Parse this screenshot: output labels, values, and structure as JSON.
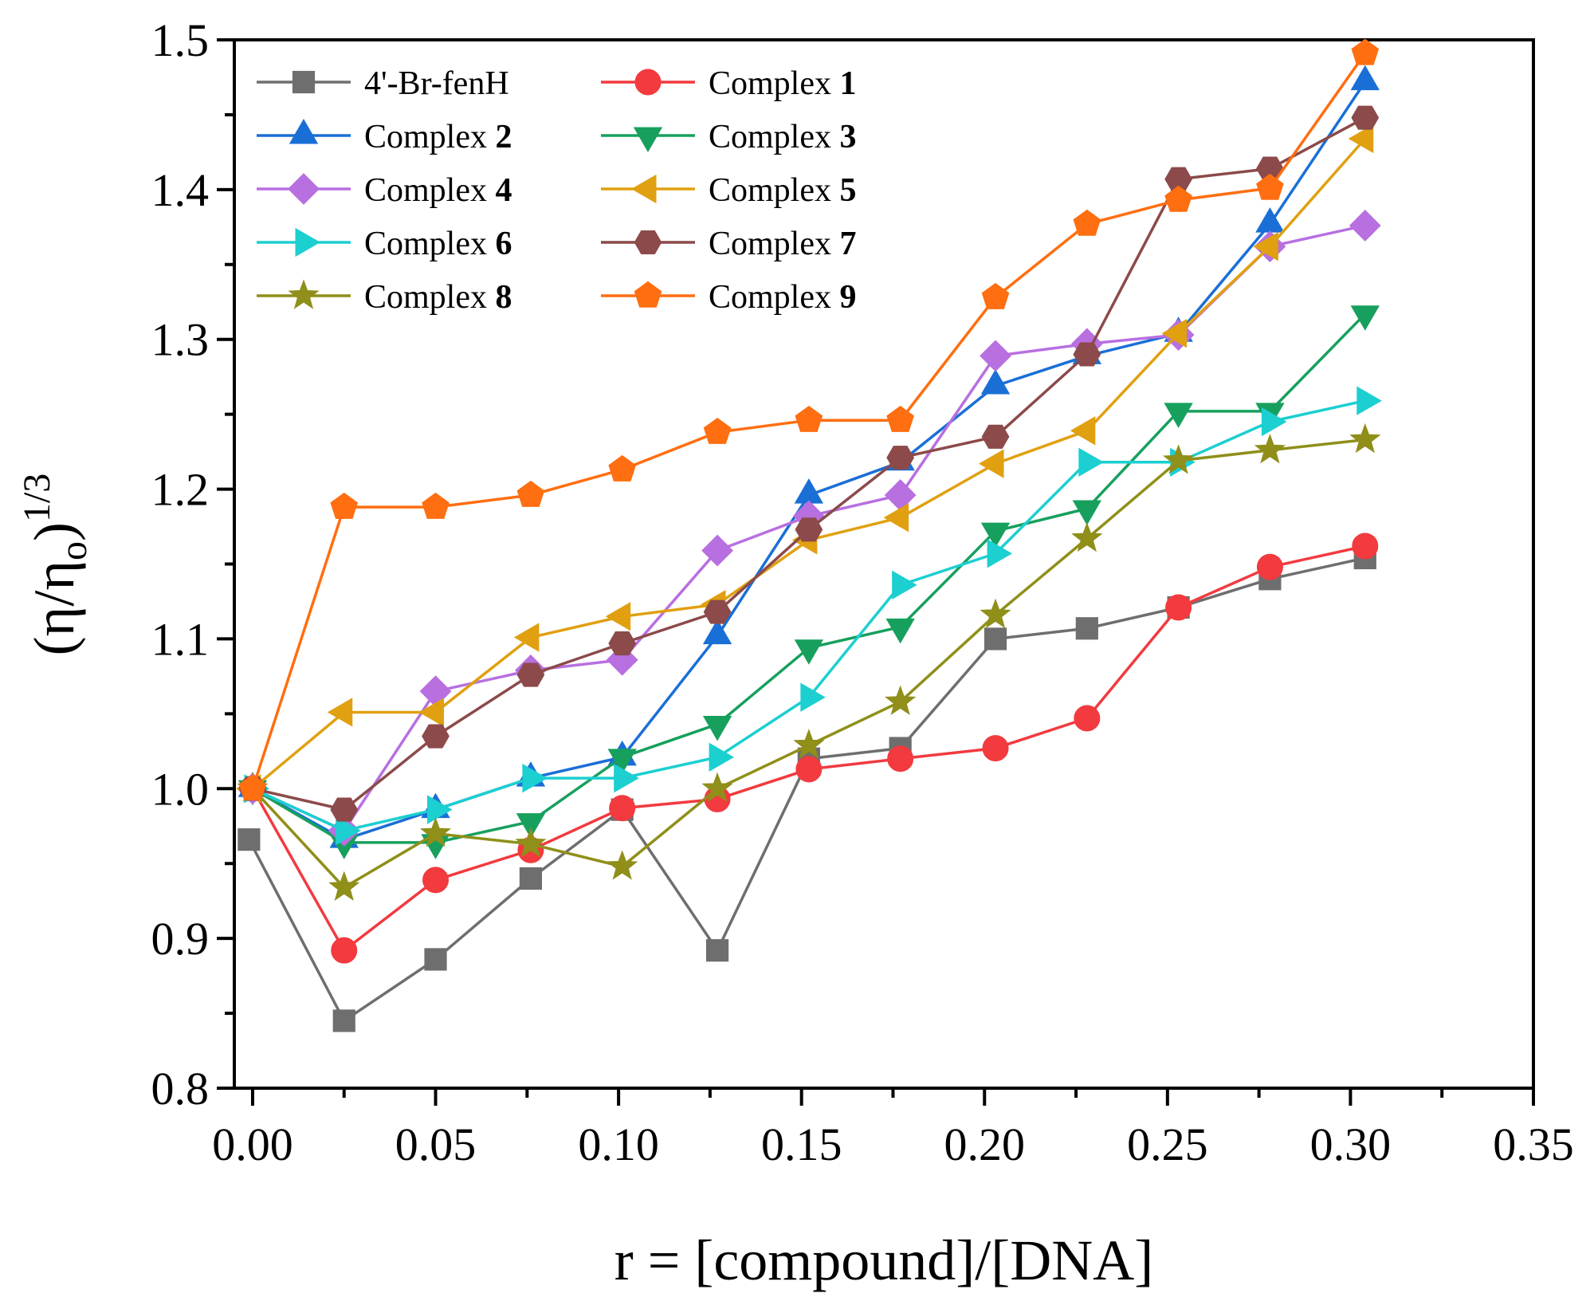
{
  "chart_data": {
    "type": "line",
    "xlabel": "r = [compound]/[DNA]",
    "ylabel_main": "(η/η",
    "ylabel_sub": "o",
    "ylabel_close": ")",
    "ylabel_sup": "1/3",
    "xlim": [
      -0.005,
      0.35
    ],
    "ylim": [
      0.8,
      1.5
    ],
    "xticks": [
      0.0,
      0.05,
      0.1,
      0.15,
      0.2,
      0.25,
      0.3,
      0.35
    ],
    "xtick_labels": [
      "0.00",
      "0.05",
      "0.10",
      "0.15",
      "0.20",
      "0.25",
      "0.30",
      "0.35"
    ],
    "yticks": [
      0.8,
      0.9,
      1.0,
      1.1,
      1.2,
      1.3,
      1.4,
      1.5
    ],
    "ytick_labels": [
      "0.8",
      "0.9",
      "1.0",
      "1.1",
      "1.2",
      "1.3",
      "1.4",
      "1.5"
    ],
    "grid": false,
    "legend_position": "top-left",
    "series": [
      {
        "name": "4'-Br-fenH",
        "label_prefix": "4'-Br-fenH",
        "label_num": "",
        "color": "#6e6e6e",
        "marker": "square",
        "x": [
          0.0,
          0.025,
          0.05,
          0.076,
          0.101,
          0.127,
          0.152,
          0.177,
          0.203,
          0.228,
          0.253,
          0.278,
          0.304
        ],
        "y": [
          0.966,
          0.845,
          0.886,
          0.94,
          0.986,
          0.892,
          1.02,
          1.027,
          1.1,
          1.107,
          1.121,
          1.14,
          1.154
        ],
        "xfirst": -0.001,
        "yfirst": 0.966
      },
      {
        "name": "Complex 1",
        "label_prefix": "Complex ",
        "label_num": "1",
        "color": "#f23a3f",
        "marker": "circle",
        "x": [
          0.0,
          0.025,
          0.05,
          0.076,
          0.101,
          0.127,
          0.152,
          0.177,
          0.203,
          0.228,
          0.253,
          0.278,
          0.304
        ],
        "y": [
          1.0,
          0.892,
          0.939,
          0.959,
          0.987,
          0.993,
          1.013,
          1.02,
          1.027,
          1.047,
          1.121,
          1.148,
          1.162
        ]
      },
      {
        "name": "Complex 2",
        "label_prefix": "Complex ",
        "label_num": "2",
        "color": "#1a6fd6",
        "marker": "triangle-up",
        "x": [
          0.0,
          0.025,
          0.05,
          0.076,
          0.101,
          0.127,
          0.152,
          0.177,
          0.203,
          0.228,
          0.253,
          0.278,
          0.304
        ],
        "y": [
          1.0,
          0.966,
          0.986,
          1.007,
          1.021,
          1.102,
          1.196,
          1.218,
          1.269,
          1.289,
          1.304,
          1.377,
          1.472
        ]
      },
      {
        "name": "Complex 3",
        "label_prefix": "Complex ",
        "label_num": "3",
        "color": "#17a05d",
        "marker": "triangle-down",
        "x": [
          0.0,
          0.025,
          0.05,
          0.076,
          0.101,
          0.127,
          0.152,
          0.177,
          0.203,
          0.228,
          0.253,
          0.278,
          0.304
        ],
        "y": [
          1.0,
          0.964,
          0.964,
          0.978,
          1.021,
          1.043,
          1.094,
          1.108,
          1.172,
          1.187,
          1.252,
          1.252,
          1.317
        ]
      },
      {
        "name": "Complex 4",
        "label_prefix": "Complex ",
        "label_num": "4",
        "color": "#b86fe0",
        "marker": "diamond",
        "x": [
          0.0,
          0.025,
          0.05,
          0.076,
          0.101,
          0.127,
          0.152,
          0.177,
          0.203,
          0.228,
          0.253,
          0.278,
          0.304
        ],
        "y": [
          1.0,
          0.972,
          1.065,
          1.079,
          1.086,
          1.159,
          1.182,
          1.196,
          1.289,
          1.297,
          1.303,
          1.362,
          1.376
        ]
      },
      {
        "name": "Complex 5",
        "label_prefix": "Complex ",
        "label_num": "5",
        "color": "#e0a010",
        "marker": "triangle-left",
        "x": [
          0.0,
          0.025,
          0.05,
          0.076,
          0.101,
          0.127,
          0.152,
          0.177,
          0.203,
          0.228,
          0.253,
          0.278,
          0.304
        ],
        "y": [
          1.0,
          1.051,
          1.051,
          1.101,
          1.115,
          1.123,
          1.166,
          1.181,
          1.217,
          1.239,
          1.304,
          1.362,
          1.434
        ]
      },
      {
        "name": "Complex 6",
        "label_prefix": "Complex ",
        "label_num": "6",
        "color": "#1ccfd0",
        "marker": "triangle-right",
        "x": [
          0.0,
          0.025,
          0.05,
          0.076,
          0.101,
          0.127,
          0.152,
          0.177,
          0.203,
          0.228,
          0.253,
          0.278,
          0.304
        ],
        "y": [
          1.0,
          0.972,
          0.986,
          1.007,
          1.007,
          1.021,
          1.061,
          1.136,
          1.157,
          1.218,
          1.218,
          1.245,
          1.259
        ]
      },
      {
        "name": "Complex 7",
        "label_prefix": "Complex ",
        "label_num": "7",
        "color": "#8c4a4a",
        "marker": "hexagon",
        "x": [
          0.0,
          0.025,
          0.05,
          0.076,
          0.101,
          0.127,
          0.152,
          0.177,
          0.203,
          0.228,
          0.253,
          0.278,
          0.304
        ],
        "y": [
          1.0,
          0.986,
          1.035,
          1.076,
          1.097,
          1.118,
          1.173,
          1.221,
          1.235,
          1.29,
          1.407,
          1.414,
          1.448
        ]
      },
      {
        "name": "Complex 8",
        "label_prefix": "Complex ",
        "label_num": "8",
        "color": "#8f8f1a",
        "marker": "star",
        "x": [
          0.0,
          0.025,
          0.05,
          0.076,
          0.101,
          0.127,
          0.152,
          0.177,
          0.203,
          0.228,
          0.253,
          0.278,
          0.304
        ],
        "y": [
          1.0,
          0.934,
          0.97,
          0.963,
          0.948,
          1.0,
          1.029,
          1.058,
          1.116,
          1.167,
          1.219,
          1.226,
          1.233
        ]
      },
      {
        "name": "Complex 9",
        "label_prefix": "Complex ",
        "label_num": "9",
        "color": "#ff6e10",
        "marker": "pentagon",
        "x": [
          0.0,
          0.025,
          0.05,
          0.076,
          0.101,
          0.127,
          0.152,
          0.177,
          0.203,
          0.228,
          0.253,
          0.278,
          0.304
        ],
        "y": [
          1.0,
          1.188,
          1.188,
          1.196,
          1.213,
          1.238,
          1.246,
          1.246,
          1.328,
          1.377,
          1.393,
          1.401,
          1.491
        ]
      }
    ]
  }
}
